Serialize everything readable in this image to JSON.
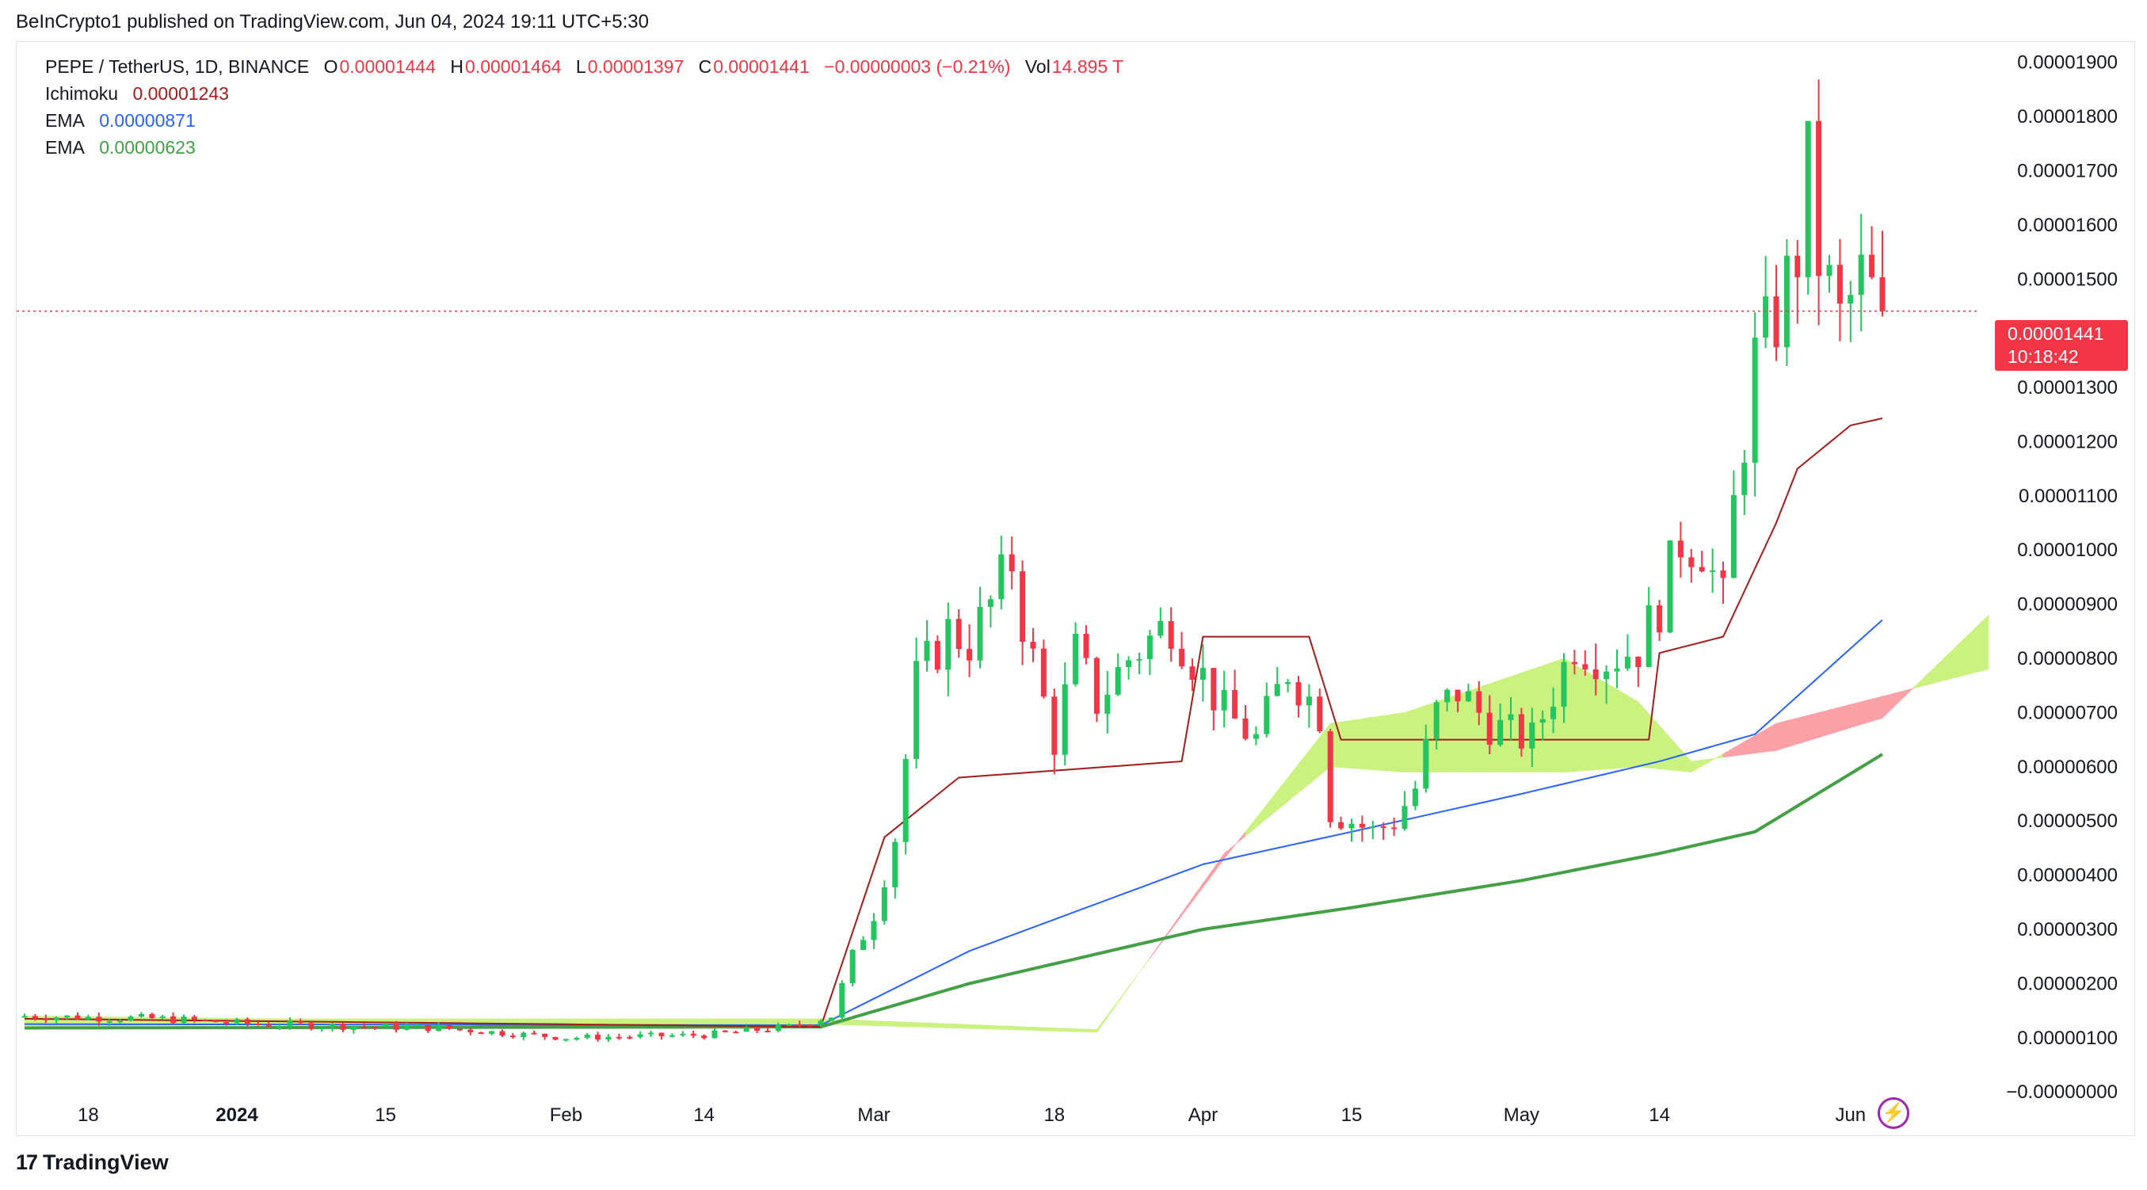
{
  "header": {
    "published_line": "BeInCrypto1 published on TradingView.com, Jun 04, 2024 19:11 UTC+5:30"
  },
  "legend": {
    "symbol": "PEPE / TetherUS, 1D, BINANCE",
    "o_label": "O",
    "o_value": "0.00001444",
    "h_label": "H",
    "h_value": "0.00001464",
    "l_label": "L",
    "l_value": "0.00001397",
    "c_label": "C",
    "c_value": "0.00001441",
    "change": "−0.00000003 (−0.21%)",
    "vol_label": "Vol",
    "vol_value": "14.895 T",
    "ichimoku_label": "Ichimoku",
    "ichimoku_value": "0.00001243",
    "ema1_label": "EMA",
    "ema1_value": "0.00000871",
    "ema2_label": "EMA",
    "ema2_value": "0.00000623"
  },
  "price_tag": {
    "price": "0.00001441",
    "countdown": "10:18:42"
  },
  "footer": {
    "brand": "TradingView"
  },
  "colors": {
    "up": "#22c55e",
    "down": "#f23645",
    "ema_fast": "#2962ff",
    "ema_slow": "#43a047",
    "base_line": "#a31c1c",
    "cloud_bull": "#c9f27a",
    "cloud_bear": "#f99ca3"
  },
  "chart_data": {
    "type": "candlestick",
    "title": "PEPE / TetherUS, 1D, BINANCE",
    "y_axis_ticks": [
      "0.00001900",
      "0.00001800",
      "0.00001700",
      "0.00001600",
      "0.00001500",
      "0.00001300",
      "0.00001200",
      "0.00001100",
      "0.00001000",
      "0.00000900",
      "0.00000800",
      "0.00000700",
      "0.00000600",
      "0.00000500",
      "0.00000400",
      "0.00000300",
      "0.00000200",
      "0.00000100",
      "−0.00000000"
    ],
    "ylim": [
      -1e-07,
      1.92e-05
    ],
    "x_axis_ticks": [
      {
        "label": "18",
        "date": "2023-12-18",
        "bold": false
      },
      {
        "label": "2024",
        "date": "2024-01-01",
        "bold": true
      },
      {
        "label": "15",
        "date": "2024-01-15",
        "bold": false
      },
      {
        "label": "Feb",
        "date": "2024-02-01",
        "bold": false
      },
      {
        "label": "14",
        "date": "2024-02-14",
        "bold": false
      },
      {
        "label": "Mar",
        "date": "2024-03-01",
        "bold": false
      },
      {
        "label": "18",
        "date": "2024-03-18",
        "bold": false
      },
      {
        "label": "Apr",
        "date": "2024-04-01",
        "bold": false
      },
      {
        "label": "15",
        "date": "2024-04-15",
        "bold": false
      },
      {
        "label": "May",
        "date": "2024-05-01",
        "bold": false
      },
      {
        "label": "14",
        "date": "2024-05-14",
        "bold": false
      },
      {
        "label": "Jun",
        "date": "2024-06-01",
        "bold": false
      }
    ],
    "date_range": [
      "2023-12-12",
      "2024-06-04"
    ],
    "last_price": 1.441e-05,
    "candles_close_keypoints": [
      [
        "2023-12-12",
        1.4e-06
      ],
      [
        "2023-12-25",
        1.35e-06
      ],
      [
        "2024-01-03",
        1.25e-06
      ],
      [
        "2024-01-20",
        1.18e-06
      ],
      [
        "2024-02-01",
        1e-06
      ],
      [
        "2024-02-14",
        1.05e-06
      ],
      [
        "2024-02-22",
        1.2e-06
      ],
      [
        "2024-02-26",
        1.4e-06
      ],
      [
        "2024-02-28",
        2.5e-06
      ],
      [
        "2024-03-01",
        3.3e-06
      ],
      [
        "2024-03-03",
        4.7e-06
      ],
      [
        "2024-03-05",
        7.6e-06
      ],
      [
        "2024-03-08",
        8.5e-06
      ],
      [
        "2024-03-10",
        8.3e-06
      ],
      [
        "2024-03-12",
        9e-06
      ],
      [
        "2024-03-14",
        9.8e-06
      ],
      [
        "2024-03-15",
        8.7e-06
      ],
      [
        "2024-03-17",
        7.2e-06
      ],
      [
        "2024-03-18",
        6.5e-06
      ],
      [
        "2024-03-20",
        8.1e-06
      ],
      [
        "2024-03-22",
        7.2e-06
      ],
      [
        "2024-03-25",
        8e-06
      ],
      [
        "2024-03-29",
        8.7e-06
      ],
      [
        "2024-03-31",
        8e-06
      ],
      [
        "2024-04-03",
        7e-06
      ],
      [
        "2024-04-06",
        6.5e-06
      ],
      [
        "2024-04-09",
        7.8e-06
      ],
      [
        "2024-04-12",
        7e-06
      ],
      [
        "2024-04-13",
        5.2e-06
      ],
      [
        "2024-04-17",
        4.8e-06
      ],
      [
        "2024-04-19",
        5e-06
      ],
      [
        "2024-04-21",
        5.6e-06
      ],
      [
        "2024-04-23",
        7e-06
      ],
      [
        "2024-04-25",
        7.4e-06
      ],
      [
        "2024-04-28",
        6.8e-06
      ],
      [
        "2024-04-30",
        6.6e-06
      ],
      [
        "2024-05-02",
        6.5e-06
      ],
      [
        "2024-05-04",
        7.4e-06
      ],
      [
        "2024-05-06",
        8.3e-06
      ],
      [
        "2024-05-09",
        8e-06
      ],
      [
        "2024-05-12",
        8.2e-06
      ],
      [
        "2024-05-14",
        9e-06
      ],
      [
        "2024-05-16",
        1.02e-05
      ],
      [
        "2024-05-18",
        1.01e-05
      ],
      [
        "2024-05-20",
        9e-06
      ],
      [
        "2024-05-21",
        1.08e-05
      ],
      [
        "2024-05-23",
        1.35e-05
      ],
      [
        "2024-05-25",
        1.43e-05
      ],
      [
        "2024-05-27",
        1.55e-05
      ],
      [
        "2024-05-28",
        1.7e-05
      ],
      [
        "2024-05-29",
        1.54e-05
      ],
      [
        "2024-05-31",
        1.42e-05
      ],
      [
        "2024-06-02",
        1.5e-05
      ],
      [
        "2024-06-04",
        1.441e-05
      ]
    ],
    "series": [
      {
        "name": "EMA",
        "color": "#2962ff",
        "points": [
          [
            "2023-12-12",
            1.25e-06
          ],
          [
            "2024-02-25",
            1.23e-06
          ],
          [
            "2024-03-10",
            2.6e-06
          ],
          [
            "2024-04-01",
            4.2e-06
          ],
          [
            "2024-04-15",
            4.8e-06
          ],
          [
            "2024-05-01",
            5.5e-06
          ],
          [
            "2024-05-14",
            6.1e-06
          ],
          [
            "2024-05-23",
            6.6e-06
          ],
          [
            "2024-06-04",
            8.71e-06
          ]
        ]
      },
      {
        "name": "EMA",
        "color": "#43a047",
        "points": [
          [
            "2023-12-12",
            1.18e-06
          ],
          [
            "2024-02-25",
            1.2e-06
          ],
          [
            "2024-03-10",
            2e-06
          ],
          [
            "2024-04-01",
            3e-06
          ],
          [
            "2024-04-15",
            3.4e-06
          ],
          [
            "2024-05-01",
            3.9e-06
          ],
          [
            "2024-05-14",
            4.4e-06
          ],
          [
            "2024-05-23",
            4.8e-06
          ],
          [
            "2024-06-04",
            6.23e-06
          ]
        ]
      },
      {
        "name": "Ichimoku",
        "color": "#a31c1c",
        "points": [
          [
            "2023-12-12",
            1.35e-06
          ],
          [
            "2024-02-25",
            1.2e-06
          ],
          [
            "2024-03-02",
            4.7e-06
          ],
          [
            "2024-03-09",
            5.8e-06
          ],
          [
            "2024-03-30",
            6.1e-06
          ],
          [
            "2024-04-01",
            8.4e-06
          ],
          [
            "2024-04-11",
            8.4e-06
          ],
          [
            "2024-04-14",
            6.5e-06
          ],
          [
            "2024-05-04",
            6.5e-06
          ],
          [
            "2024-05-13",
            6.5e-06
          ],
          [
            "2024-05-14",
            8.1e-06
          ],
          [
            "2024-05-20",
            8.4e-06
          ],
          [
            "2024-05-25",
            1.05e-05
          ],
          [
            "2024-05-27",
            1.15e-05
          ],
          [
            "2024-06-01",
            1.23e-05
          ],
          [
            "2024-06-04",
            1.243e-05
          ]
        ]
      }
    ],
    "cloud": {
      "bullish_color": "#c9f27a",
      "bearish_color": "#f99ca3",
      "upper": [
        [
          "2023-12-12",
          1.4e-06
        ],
        [
          "2024-01-05",
          1.35e-06
        ],
        [
          "2024-02-25",
          1.35e-06
        ],
        [
          "2024-03-22",
          1.15e-06
        ],
        [
          "2024-04-03",
          4.3e-06
        ],
        [
          "2024-04-13",
          6.8e-06
        ],
        [
          "2024-04-20",
          7e-06
        ],
        [
          "2024-05-05",
          8e-06
        ],
        [
          "2024-05-12",
          7.2e-06
        ],
        [
          "2024-05-17",
          6.1e-06
        ],
        [
          "2024-05-25",
          6.3e-06
        ],
        [
          "2024-06-04",
          6.9e-06
        ],
        [
          "2024-06-14",
          8.8e-06
        ]
      ],
      "lower": [
        [
          "2023-12-12",
          1.2e-06
        ],
        [
          "2024-01-05",
          1.25e-06
        ],
        [
          "2024-02-25",
          1.25e-06
        ],
        [
          "2024-03-22",
          1.1e-06
        ],
        [
          "2024-04-03",
          4.4e-06
        ],
        [
          "2024-04-13",
          6e-06
        ],
        [
          "2024-04-20",
          5.9e-06
        ],
        [
          "2024-05-05",
          5.9e-06
        ],
        [
          "2024-05-12",
          6e-06
        ],
        [
          "2024-05-17",
          5.9e-06
        ],
        [
          "2024-05-25",
          6.8e-06
        ],
        [
          "2024-06-04",
          7.3e-06
        ],
        [
          "2024-06-14",
          7.8e-06
        ]
      ]
    }
  }
}
